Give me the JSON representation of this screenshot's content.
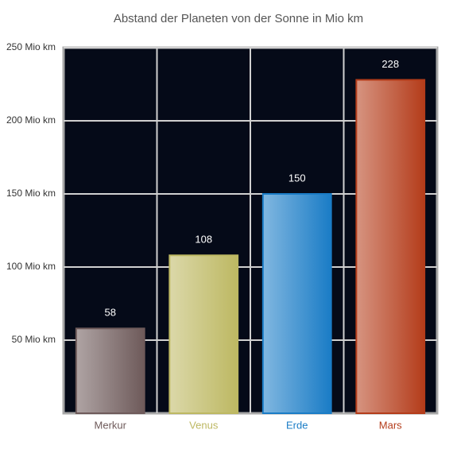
{
  "chart_data": {
    "type": "bar",
    "title": "Abstand der Planeten von der Sonne in Mio km",
    "categories": [
      "Merkur",
      "Venus",
      "Erde",
      "Mars"
    ],
    "values": [
      58,
      108,
      150,
      228
    ],
    "colors": [
      "#6e5a5a",
      "#bdb862",
      "#1a7cc6",
      "#b43c1a"
    ],
    "ylim": [
      0,
      250
    ],
    "yticks": [
      {
        "value": 50,
        "label": "50 Mio km"
      },
      {
        "value": 100,
        "label": "100 Mio km"
      },
      {
        "value": 150,
        "label": "150 Mio km"
      },
      {
        "value": 200,
        "label": "200 Mio km"
      },
      {
        "value": 250,
        "label": "250 Mio km"
      }
    ],
    "grid": true
  }
}
